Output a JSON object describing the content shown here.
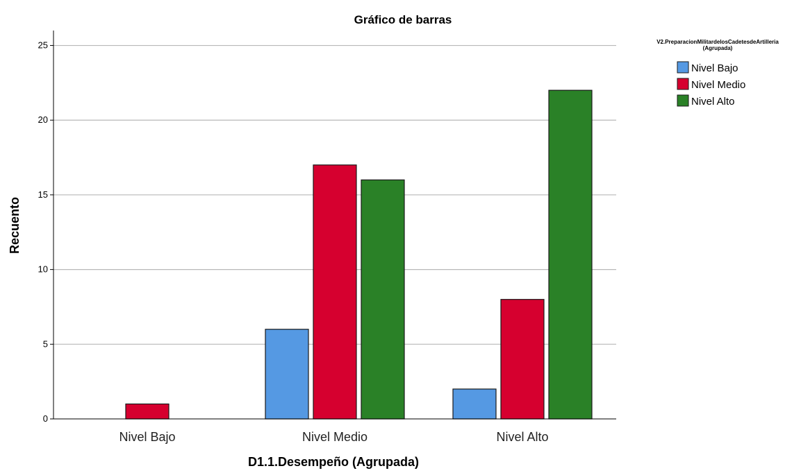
{
  "chart_data": {
    "type": "bar",
    "title": "Gráfico de barras",
    "xlabel": "D1.1.Desempeño (Agrupada)",
    "ylabel": "Recuento",
    "categories": [
      "Nivel Bajo",
      "Nivel Medio",
      "Nivel Alto"
    ],
    "series": [
      {
        "name": "Nivel Bajo",
        "color": "#5599e3",
        "values": [
          0,
          6,
          2
        ]
      },
      {
        "name": "Nivel Medio",
        "color": "#d6002f",
        "values": [
          1,
          17,
          8
        ]
      },
      {
        "name": "Nivel Alto",
        "color": "#2a8127",
        "values": [
          0,
          16,
          22
        ]
      }
    ],
    "ylim": [
      0,
      26
    ],
    "yticks": [
      0,
      5,
      10,
      15,
      20,
      25
    ],
    "grid": true,
    "legend": {
      "title_line1": "V2.PreparacionMilitardelosCadetesdeArtilleria",
      "title_line2": "(Agrupada)",
      "position": "top-right"
    }
  }
}
